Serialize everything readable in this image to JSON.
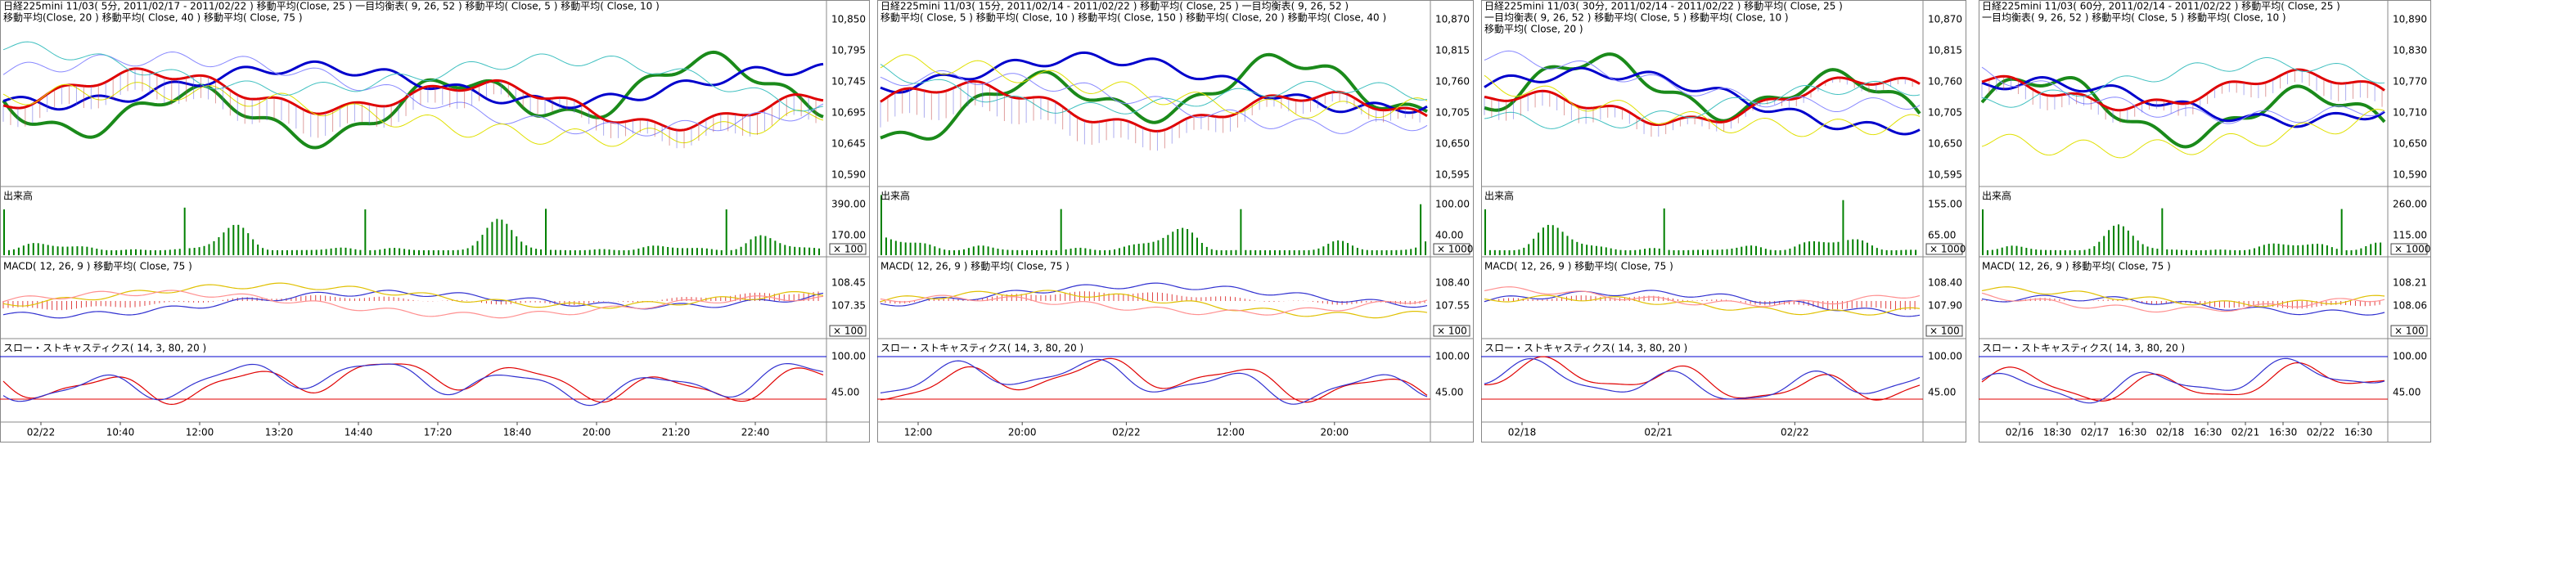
{
  "panels": [
    {
      "header": [
        "日経225mini 11/03( 5分, 2011/02/17 - 2011/02/22 )   移動平均(Close, 25 )   一目均衡表( 9, 26, 52 )   移動平均( Close, 5 )   移動平均( Close, 10 )",
        "移動平均(Close, 20 )   移動平均( Close, 40 )   移動平均( Close, 75 )"
      ],
      "price_axis": [
        "10,850",
        "10,795",
        "10,745",
        "10,695",
        "10,645",
        "10,590"
      ],
      "volume": {
        "label": "出来高",
        "axis": [
          "390.00",
          "170.00"
        ],
        "unit": "× 100"
      },
      "macd": {
        "label": "MACD( 12, 26, 9 )   移動平均( Close, 75 )",
        "axis": [
          "108.45",
          "107.35"
        ],
        "unit": "× 100"
      },
      "stochastics": {
        "label": "スロー・ストキャスティクス( 14, 3, 80, 20 )",
        "axis": [
          "100.00",
          "45.00"
        ]
      },
      "time_axis": [
        "02/22",
        "10:40",
        "12:00",
        "13:20",
        "14:40",
        "17:20",
        "18:40",
        "20:00",
        "21:20",
        "22:40"
      ]
    },
    {
      "header": [
        "日経225mini 11/03( 15分, 2011/02/14 - 2011/02/22 )   移動平均( Close, 25 )   一目均衡表( 9, 26, 52 )",
        "移動平均( Close, 5 )   移動平均( Close, 10 )   移動平均( Close, 150 )   移動平均( Close, 20 )   移動平均( Close, 40 )"
      ],
      "price_axis": [
        "10,870",
        "10,815",
        "10,760",
        "10,705",
        "10,650",
        "10,595"
      ],
      "volume": {
        "label": "出来高",
        "axis": [
          "100.00",
          "40.00"
        ],
        "unit": "× 1000"
      },
      "macd": {
        "label": "MACD( 12, 26, 9 )   移動平均( Close, 75 )",
        "axis": [
          "108.40",
          "107.55"
        ],
        "unit": "× 100"
      },
      "stochastics": {
        "label": "スロー・ストキャスティクス( 14, 3, 80, 20 )",
        "axis": [
          "100.00",
          "45.00"
        ]
      },
      "time_axis": [
        "12:00",
        "20:00",
        "02/22",
        "12:00",
        "20:00"
      ]
    },
    {
      "header": [
        "日経225mini 11/03( 30分, 2011/02/14 - 2011/02/22 )   移動平均( Close, 25 )",
        "一目均衡表( 9, 26, 52 )   移動平均( Close, 5 )   移動平均( Close, 10 )",
        "移動平均( Close, 20 )"
      ],
      "price_axis": [
        "10,870",
        "10,815",
        "10,760",
        "10,705",
        "10,650",
        "10,595"
      ],
      "volume": {
        "label": "出来高",
        "axis": [
          "155.00",
          "65.00"
        ],
        "unit": "× 1000"
      },
      "macd": {
        "label": "MACD( 12, 26, 9 )   移動平均( Close, 75 )",
        "axis": [
          "108.40",
          "107.90"
        ],
        "unit": "× 100"
      },
      "stochastics": {
        "label": "スロー・ストキャスティクス( 14, 3, 80, 20 )",
        "axis": [
          "100.00",
          "45.00"
        ]
      },
      "time_axis": [
        "02/18",
        "02/21",
        "02/22"
      ]
    },
    {
      "header": [
        "日経225mini 11/03( 60分, 2011/02/14 - 2011/02/22 )   移動平均( Close, 25 )",
        "一目均衡表( 9, 26, 52 )   移動平均( Close, 5 )   移動平均( Close, 10 )"
      ],
      "price_axis": [
        "10,890",
        "10,830",
        "10,770",
        "10,710",
        "10,650",
        "10,590"
      ],
      "volume": {
        "label": "出来高",
        "axis": [
          "260.00",
          "115.00"
        ],
        "unit": "× 1000"
      },
      "macd": {
        "label": "MACD( 12, 26, 9 )   移動平均( Close, 75 )",
        "axis": [
          "108.21",
          "108.06"
        ],
        "unit": "× 100"
      },
      "stochastics": {
        "label": "スロー・ストキャスティクス( 14, 3, 80, 20 )",
        "axis": [
          "100.00",
          "45.00"
        ]
      },
      "time_axis": [
        "02/16",
        "18:30",
        "02/17",
        "16:30",
        "02/18",
        "16:30",
        "02/21",
        "16:30",
        "02/22",
        "16:30"
      ]
    }
  ]
}
